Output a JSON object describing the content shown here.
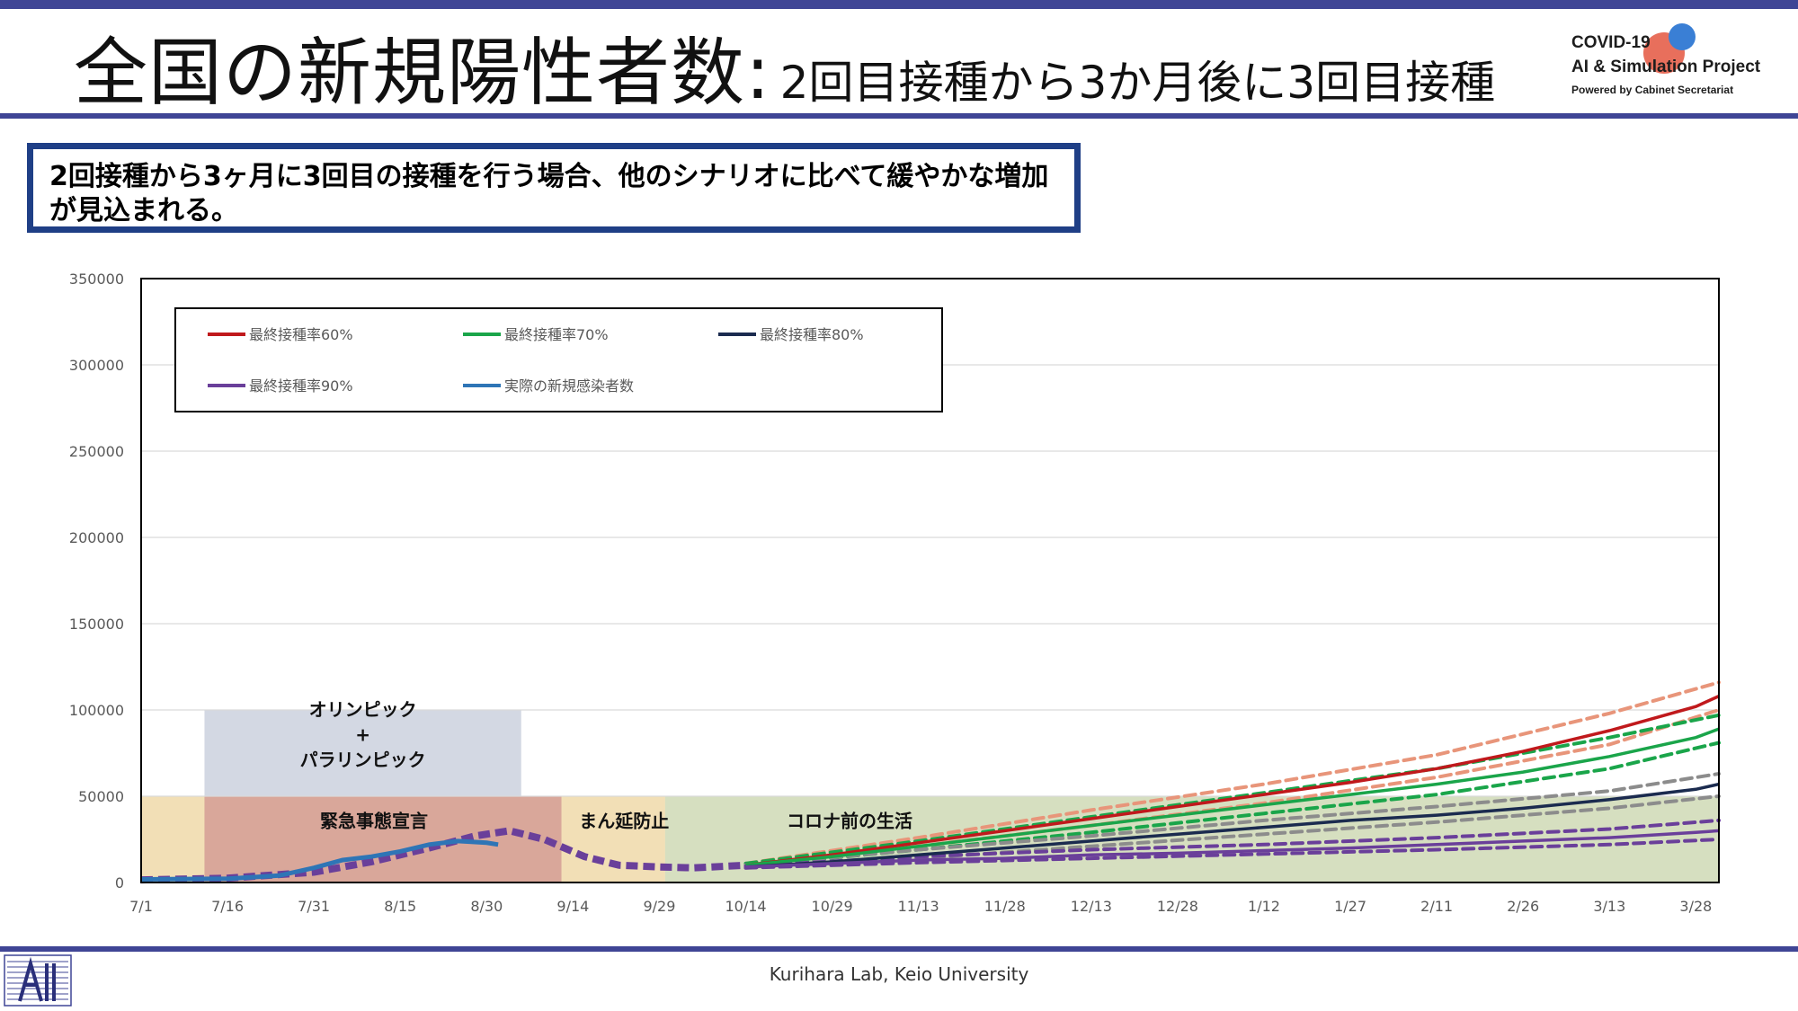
{
  "title": {
    "main": "全国の新規陽性者数:",
    "sub": "2回目接種から3か月後に3回目接種"
  },
  "logo": {
    "line1": "COVID-19",
    "line2": "AI & Simulation Project",
    "line3": "Powered by Cabinet Secretariat"
  },
  "callout": {
    "text": "2回接種から3ヶ月に3回目の接種を行う場合、他のシナリオに比べて緩やかな増加が見込まれる。"
  },
  "footer": {
    "text": "Kurihara Lab, Keio University"
  },
  "colors": {
    "accent": "#3f4595",
    "callout_border": "#1f3f86",
    "rate60": "#c0191c",
    "rate60_band": "#e8957a",
    "rate70": "#1aa54a",
    "rate80": "#1b2b4f",
    "rate80_band": "#8c8c8c",
    "rate90": "#6a3f9a",
    "actual": "#2e75b6"
  },
  "chart_data": {
    "type": "line",
    "ylim": [
      0,
      350000
    ],
    "yticks": [
      0,
      50000,
      100000,
      150000,
      200000,
      250000,
      300000,
      350000
    ],
    "xticks": [
      "7/1",
      "7/16",
      "7/31",
      "8/15",
      "8/30",
      "9/14",
      "9/29",
      "10/14",
      "10/29",
      "11/13",
      "11/28",
      "12/13",
      "12/28",
      "1/12",
      "1/27",
      "2/11",
      "2/26",
      "3/13",
      "3/28"
    ],
    "x_start": "7/1",
    "x_end": "4/1",
    "regions": [
      {
        "label": "",
        "start": "7/1",
        "end": "9/30",
        "ymax": 50000,
        "color": "#f2dfb6"
      },
      {
        "label": "緊急事態宣言",
        "start": "7/12",
        "end": "9/12",
        "ymax": 50000,
        "color": "#d9a79a"
      },
      {
        "label": "まん延防止",
        "start": "9/12",
        "end": "9/30",
        "ymax": 50000,
        "color": "#f2dfb6"
      },
      {
        "label": "コロナ前の生活",
        "start": "9/30",
        "end": "4/1",
        "ymax": 50000,
        "color": "#d6dfc0"
      },
      {
        "label": "オリンピック\n+\nパラリンピック",
        "start": "7/12",
        "end": "9/5",
        "ymin": 50000,
        "ymax": 100000,
        "color": "#d3d8e3"
      }
    ],
    "legend": {
      "placement": "top-left",
      "entries": [
        {
          "name": "最終接種率60%",
          "color": "#c0191c"
        },
        {
          "name": "最終接種率70%",
          "color": "#1aa54a"
        },
        {
          "name": "最終接種率80%",
          "color": "#1b2b4f"
        },
        {
          "name": "最終接種率90%",
          "color": "#6a3f9a"
        },
        {
          "name": "実際の新規感染者数",
          "color": "#2e75b6"
        }
      ]
    },
    "common_path": {
      "dates": [
        "7/1",
        "7/16",
        "7/31",
        "8/10",
        "8/20",
        "8/28",
        "9/3",
        "9/9",
        "9/16",
        "9/22",
        "9/29",
        "10/5",
        "10/14"
      ],
      "values": [
        1500,
        2500,
        6000,
        12000,
        20000,
        27000,
        30000,
        25000,
        15000,
        10000,
        9000,
        8500,
        10000
      ]
    },
    "actual": {
      "name": "実際の新規感染者数",
      "dates": [
        "7/1",
        "7/16",
        "7/25",
        "7/31",
        "8/5",
        "8/10",
        "8/15",
        "8/20",
        "8/25",
        "8/30",
        "9/1"
      ],
      "values": [
        1800,
        2200,
        4000,
        8500,
        13000,
        15000,
        18000,
        22000,
        24000,
        23000,
        22000
      ]
    },
    "series": [
      {
        "name": "最終接種率60%",
        "dates": [
          "10/14",
          "10/29",
          "11/13",
          "11/28",
          "12/13",
          "12/28",
          "1/12",
          "1/27",
          "2/11",
          "2/26",
          "3/13",
          "3/28",
          "4/1"
        ],
        "values": [
          10000,
          16000,
          23000,
          30000,
          37000,
          44000,
          51000,
          58000,
          66000,
          76000,
          88000,
          102000,
          108000
        ]
      },
      {
        "name": "最終接種率60% 上限",
        "band": true,
        "dates": [
          "10/14",
          "11/13",
          "12/13",
          "1/12",
          "2/11",
          "3/13",
          "4/1"
        ],
        "values": [
          11000,
          26000,
          42000,
          57000,
          74000,
          98000,
          116000
        ]
      },
      {
        "name": "最終接種率60% 下限",
        "band": true,
        "dates": [
          "10/14",
          "11/13",
          "12/13",
          "1/12",
          "2/11",
          "3/13",
          "4/1"
        ],
        "values": [
          9500,
          21000,
          33000,
          46000,
          61000,
          80000,
          100000
        ]
      },
      {
        "name": "最終接種率70%",
        "dates": [
          "10/14",
          "10/29",
          "11/13",
          "11/28",
          "12/13",
          "12/28",
          "1/12",
          "1/27",
          "2/11",
          "2/26",
          "3/13",
          "3/28",
          "4/1"
        ],
        "values": [
          10000,
          15000,
          21000,
          27000,
          33000,
          39000,
          45000,
          51000,
          57000,
          64000,
          73000,
          84000,
          89000
        ]
      },
      {
        "name": "最終接種率70% 上限",
        "band": true,
        "dates": [
          "10/14",
          "11/13",
          "12/13",
          "1/12",
          "2/11",
          "3/13",
          "4/1"
        ],
        "values": [
          11000,
          24000,
          38000,
          52000,
          66000,
          84000,
          97000
        ]
      },
      {
        "name": "最終接種率70% 下限",
        "band": true,
        "dates": [
          "10/14",
          "11/13",
          "12/13",
          "1/12",
          "2/11",
          "3/13",
          "4/1"
        ],
        "values": [
          9500,
          19000,
          29000,
          40000,
          51000,
          66000,
          81000
        ]
      },
      {
        "name": "最終接種率80%",
        "dates": [
          "10/14",
          "10/29",
          "11/13",
          "11/28",
          "12/13",
          "12/28",
          "1/12",
          "1/27",
          "2/11",
          "2/26",
          "3/13",
          "3/28",
          "4/1"
        ],
        "values": [
          9000,
          12000,
          16000,
          20000,
          24000,
          28000,
          32000,
          36000,
          39000,
          43000,
          48000,
          54000,
          57000
        ]
      },
      {
        "name": "最終接種率80% 上限",
        "band": true,
        "dates": [
          "10/14",
          "11/13",
          "12/13",
          "1/12",
          "2/11",
          "3/13",
          "4/1"
        ],
        "values": [
          10000,
          19000,
          27000,
          36000,
          44000,
          53000,
          63000
        ]
      },
      {
        "name": "最終接種率80% 下限",
        "band": true,
        "dates": [
          "10/14",
          "11/13",
          "12/13",
          "1/12",
          "2/11",
          "3/13",
          "4/1"
        ],
        "values": [
          8500,
          14000,
          21000,
          28000,
          35000,
          43000,
          50000
        ]
      },
      {
        "name": "最終接種率90%",
        "dates": [
          "10/14",
          "10/29",
          "11/13",
          "11/28",
          "12/13",
          "12/28",
          "1/12",
          "1/27",
          "2/11",
          "2/26",
          "3/13",
          "3/28",
          "4/1"
        ],
        "values": [
          9000,
          11000,
          13000,
          14000,
          16000,
          17000,
          18500,
          20000,
          22000,
          24000,
          26000,
          29000,
          30000
        ]
      },
      {
        "name": "最終接種率90% 上限",
        "band": true,
        "dates": [
          "10/14",
          "11/13",
          "12/13",
          "1/12",
          "2/11",
          "3/13",
          "4/1"
        ],
        "values": [
          9500,
          15000,
          19000,
          22000,
          26000,
          31000,
          36000
        ]
      },
      {
        "name": "最終接種率90% 下限",
        "band": true,
        "dates": [
          "10/14",
          "11/13",
          "12/13",
          "1/12",
          "2/11",
          "3/13",
          "4/1"
        ],
        "values": [
          8500,
          11500,
          14000,
          16500,
          19000,
          22000,
          25000
        ]
      }
    ]
  }
}
